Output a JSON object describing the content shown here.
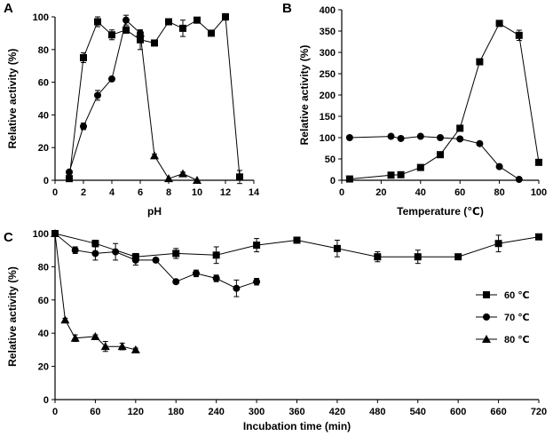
{
  "chart_data": [
    {
      "panel": "A",
      "type": "line",
      "xlabel": "pH",
      "ylabel": "Relative activity (%)",
      "xlim": [
        0,
        14
      ],
      "ylim": [
        0,
        100
      ],
      "xticks": [
        0,
        2,
        4,
        6,
        8,
        10,
        12,
        14
      ],
      "yticks": [
        0,
        20,
        40,
        60,
        80,
        100
      ],
      "grid": false,
      "series": [
        {
          "marker": "square",
          "x": [
            1,
            2,
            3,
            4,
            5,
            6,
            7,
            8,
            9,
            10,
            11,
            12,
            13
          ],
          "y": [
            1,
            75,
            97,
            89,
            92,
            86,
            84,
            97,
            93,
            98,
            90,
            100,
            2
          ],
          "err": [
            0,
            3,
            3,
            3,
            2,
            6,
            1,
            1,
            5,
            1,
            1,
            2,
            4
          ]
        },
        {
          "marker": "circle",
          "x": [
            1,
            2,
            3,
            4,
            5,
            6
          ],
          "y": [
            5,
            33,
            52,
            62,
            98,
            90
          ],
          "err": [
            1,
            2,
            3,
            1,
            3,
            2
          ]
        },
        {
          "marker": "triangle",
          "x": [
            6,
            7,
            8,
            9,
            10
          ],
          "y": [
            90,
            15,
            1,
            4,
            0
          ],
          "err": [
            0,
            1,
            0,
            1,
            0
          ]
        }
      ]
    },
    {
      "panel": "B",
      "type": "line",
      "xlabel": "Temperature (℃)",
      "ylabel": "Relative activity (%)",
      "xlim": [
        0,
        100
      ],
      "ylim": [
        0,
        400
      ],
      "xticks": [
        0,
        20,
        40,
        60,
        80,
        100
      ],
      "yticks": [
        0,
        50,
        100,
        150,
        200,
        250,
        300,
        350,
        400
      ],
      "grid": false,
      "series": [
        {
          "marker": "square",
          "x": [
            4,
            25,
            30,
            40,
            50,
            60,
            70,
            80,
            90,
            100
          ],
          "y": [
            3,
            12,
            13,
            30,
            60,
            122,
            278,
            368,
            340,
            42
          ],
          "err": [
            0,
            1,
            1,
            2,
            3,
            5,
            6,
            4,
            12,
            3
          ]
        },
        {
          "marker": "circle",
          "x": [
            4,
            25,
            30,
            40,
            50,
            60,
            70,
            80,
            90
          ],
          "y": [
            100,
            103,
            98,
            103,
            100,
            97,
            86,
            32,
            2
          ],
          "err": [
            0,
            0,
            0,
            0,
            0,
            0,
            0,
            0,
            0
          ]
        }
      ]
    },
    {
      "panel": "C",
      "type": "line",
      "xlabel": "Incubation time (min)",
      "ylabel": "Relative activity (%)",
      "xlim": [
        0,
        720
      ],
      "ylim": [
        0,
        100
      ],
      "xticks": [
        0,
        60,
        120,
        180,
        240,
        300,
        360,
        420,
        480,
        540,
        600,
        660,
        720
      ],
      "yticks": [
        0,
        20,
        40,
        60,
        80,
        100
      ],
      "grid": false,
      "legend_position": "right",
      "series": [
        {
          "name": "60 ℃",
          "marker": "square",
          "x": [
            0,
            60,
            120,
            180,
            240,
            300,
            360,
            420,
            480,
            540,
            600,
            660,
            720
          ],
          "y": [
            100,
            94,
            86,
            88,
            87,
            93,
            96,
            91,
            86,
            86,
            86,
            94,
            98
          ],
          "err": [
            1,
            2,
            2,
            3,
            5,
            4,
            1,
            5,
            3,
            4,
            1,
            5,
            1
          ]
        },
        {
          "name": "70 ℃",
          "marker": "circle",
          "x": [
            0,
            30,
            60,
            90,
            120,
            150,
            180,
            210,
            240,
            270,
            300
          ],
          "y": [
            100,
            90,
            88,
            89,
            84,
            84,
            71,
            76,
            73,
            67,
            71
          ],
          "err": [
            1,
            2,
            4,
            5,
            3,
            1,
            1,
            2,
            2,
            5,
            2
          ]
        },
        {
          "name": "80 ℃",
          "marker": "triangle",
          "x": [
            0,
            15,
            30,
            60,
            75,
            100,
            120
          ],
          "y": [
            100,
            48,
            37,
            38,
            32,
            32,
            30
          ],
          "err": [
            1,
            1,
            2,
            1,
            3,
            2,
            1
          ]
        }
      ]
    }
  ]
}
